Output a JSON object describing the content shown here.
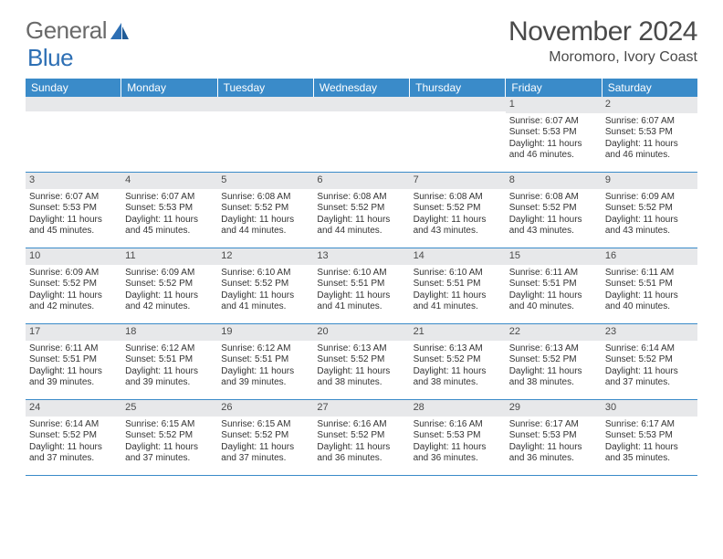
{
  "logo": {
    "text1": "General",
    "text2": "Blue"
  },
  "title": "November 2024",
  "location": "Moromoro, Ivory Coast",
  "colors": {
    "header_bg": "#3a8bc9",
    "header_text": "#ffffff",
    "daynum_bg": "#e7e8ea",
    "rule": "#3a8bc9",
    "logo_gray": "#6a6a6a",
    "logo_blue": "#2d6fb4",
    "text": "#333333",
    "title_color": "#4a4a4a"
  },
  "dow": [
    "Sunday",
    "Monday",
    "Tuesday",
    "Wednesday",
    "Thursday",
    "Friday",
    "Saturday"
  ],
  "weeks": [
    [
      {
        "n": "",
        "sr": "",
        "ss": "",
        "dl": ""
      },
      {
        "n": "",
        "sr": "",
        "ss": "",
        "dl": ""
      },
      {
        "n": "",
        "sr": "",
        "ss": "",
        "dl": ""
      },
      {
        "n": "",
        "sr": "",
        "ss": "",
        "dl": ""
      },
      {
        "n": "",
        "sr": "",
        "ss": "",
        "dl": ""
      },
      {
        "n": "1",
        "sr": "Sunrise: 6:07 AM",
        "ss": "Sunset: 5:53 PM",
        "dl": "Daylight: 11 hours and 46 minutes."
      },
      {
        "n": "2",
        "sr": "Sunrise: 6:07 AM",
        "ss": "Sunset: 5:53 PM",
        "dl": "Daylight: 11 hours and 46 minutes."
      }
    ],
    [
      {
        "n": "3",
        "sr": "Sunrise: 6:07 AM",
        "ss": "Sunset: 5:53 PM",
        "dl": "Daylight: 11 hours and 45 minutes."
      },
      {
        "n": "4",
        "sr": "Sunrise: 6:07 AM",
        "ss": "Sunset: 5:53 PM",
        "dl": "Daylight: 11 hours and 45 minutes."
      },
      {
        "n": "5",
        "sr": "Sunrise: 6:08 AM",
        "ss": "Sunset: 5:52 PM",
        "dl": "Daylight: 11 hours and 44 minutes."
      },
      {
        "n": "6",
        "sr": "Sunrise: 6:08 AM",
        "ss": "Sunset: 5:52 PM",
        "dl": "Daylight: 11 hours and 44 minutes."
      },
      {
        "n": "7",
        "sr": "Sunrise: 6:08 AM",
        "ss": "Sunset: 5:52 PM",
        "dl": "Daylight: 11 hours and 43 minutes."
      },
      {
        "n": "8",
        "sr": "Sunrise: 6:08 AM",
        "ss": "Sunset: 5:52 PM",
        "dl": "Daylight: 11 hours and 43 minutes."
      },
      {
        "n": "9",
        "sr": "Sunrise: 6:09 AM",
        "ss": "Sunset: 5:52 PM",
        "dl": "Daylight: 11 hours and 43 minutes."
      }
    ],
    [
      {
        "n": "10",
        "sr": "Sunrise: 6:09 AM",
        "ss": "Sunset: 5:52 PM",
        "dl": "Daylight: 11 hours and 42 minutes."
      },
      {
        "n": "11",
        "sr": "Sunrise: 6:09 AM",
        "ss": "Sunset: 5:52 PM",
        "dl": "Daylight: 11 hours and 42 minutes."
      },
      {
        "n": "12",
        "sr": "Sunrise: 6:10 AM",
        "ss": "Sunset: 5:52 PM",
        "dl": "Daylight: 11 hours and 41 minutes."
      },
      {
        "n": "13",
        "sr": "Sunrise: 6:10 AM",
        "ss": "Sunset: 5:51 PM",
        "dl": "Daylight: 11 hours and 41 minutes."
      },
      {
        "n": "14",
        "sr": "Sunrise: 6:10 AM",
        "ss": "Sunset: 5:51 PM",
        "dl": "Daylight: 11 hours and 41 minutes."
      },
      {
        "n": "15",
        "sr": "Sunrise: 6:11 AM",
        "ss": "Sunset: 5:51 PM",
        "dl": "Daylight: 11 hours and 40 minutes."
      },
      {
        "n": "16",
        "sr": "Sunrise: 6:11 AM",
        "ss": "Sunset: 5:51 PM",
        "dl": "Daylight: 11 hours and 40 minutes."
      }
    ],
    [
      {
        "n": "17",
        "sr": "Sunrise: 6:11 AM",
        "ss": "Sunset: 5:51 PM",
        "dl": "Daylight: 11 hours and 39 minutes."
      },
      {
        "n": "18",
        "sr": "Sunrise: 6:12 AM",
        "ss": "Sunset: 5:51 PM",
        "dl": "Daylight: 11 hours and 39 minutes."
      },
      {
        "n": "19",
        "sr": "Sunrise: 6:12 AM",
        "ss": "Sunset: 5:51 PM",
        "dl": "Daylight: 11 hours and 39 minutes."
      },
      {
        "n": "20",
        "sr": "Sunrise: 6:13 AM",
        "ss": "Sunset: 5:52 PM",
        "dl": "Daylight: 11 hours and 38 minutes."
      },
      {
        "n": "21",
        "sr": "Sunrise: 6:13 AM",
        "ss": "Sunset: 5:52 PM",
        "dl": "Daylight: 11 hours and 38 minutes."
      },
      {
        "n": "22",
        "sr": "Sunrise: 6:13 AM",
        "ss": "Sunset: 5:52 PM",
        "dl": "Daylight: 11 hours and 38 minutes."
      },
      {
        "n": "23",
        "sr": "Sunrise: 6:14 AM",
        "ss": "Sunset: 5:52 PM",
        "dl": "Daylight: 11 hours and 37 minutes."
      }
    ],
    [
      {
        "n": "24",
        "sr": "Sunrise: 6:14 AM",
        "ss": "Sunset: 5:52 PM",
        "dl": "Daylight: 11 hours and 37 minutes."
      },
      {
        "n": "25",
        "sr": "Sunrise: 6:15 AM",
        "ss": "Sunset: 5:52 PM",
        "dl": "Daylight: 11 hours and 37 minutes."
      },
      {
        "n": "26",
        "sr": "Sunrise: 6:15 AM",
        "ss": "Sunset: 5:52 PM",
        "dl": "Daylight: 11 hours and 37 minutes."
      },
      {
        "n": "27",
        "sr": "Sunrise: 6:16 AM",
        "ss": "Sunset: 5:52 PM",
        "dl": "Daylight: 11 hours and 36 minutes."
      },
      {
        "n": "28",
        "sr": "Sunrise: 6:16 AM",
        "ss": "Sunset: 5:53 PM",
        "dl": "Daylight: 11 hours and 36 minutes."
      },
      {
        "n": "29",
        "sr": "Sunrise: 6:17 AM",
        "ss": "Sunset: 5:53 PM",
        "dl": "Daylight: 11 hours and 36 minutes."
      },
      {
        "n": "30",
        "sr": "Sunrise: 6:17 AM",
        "ss": "Sunset: 5:53 PM",
        "dl": "Daylight: 11 hours and 35 minutes."
      }
    ]
  ]
}
